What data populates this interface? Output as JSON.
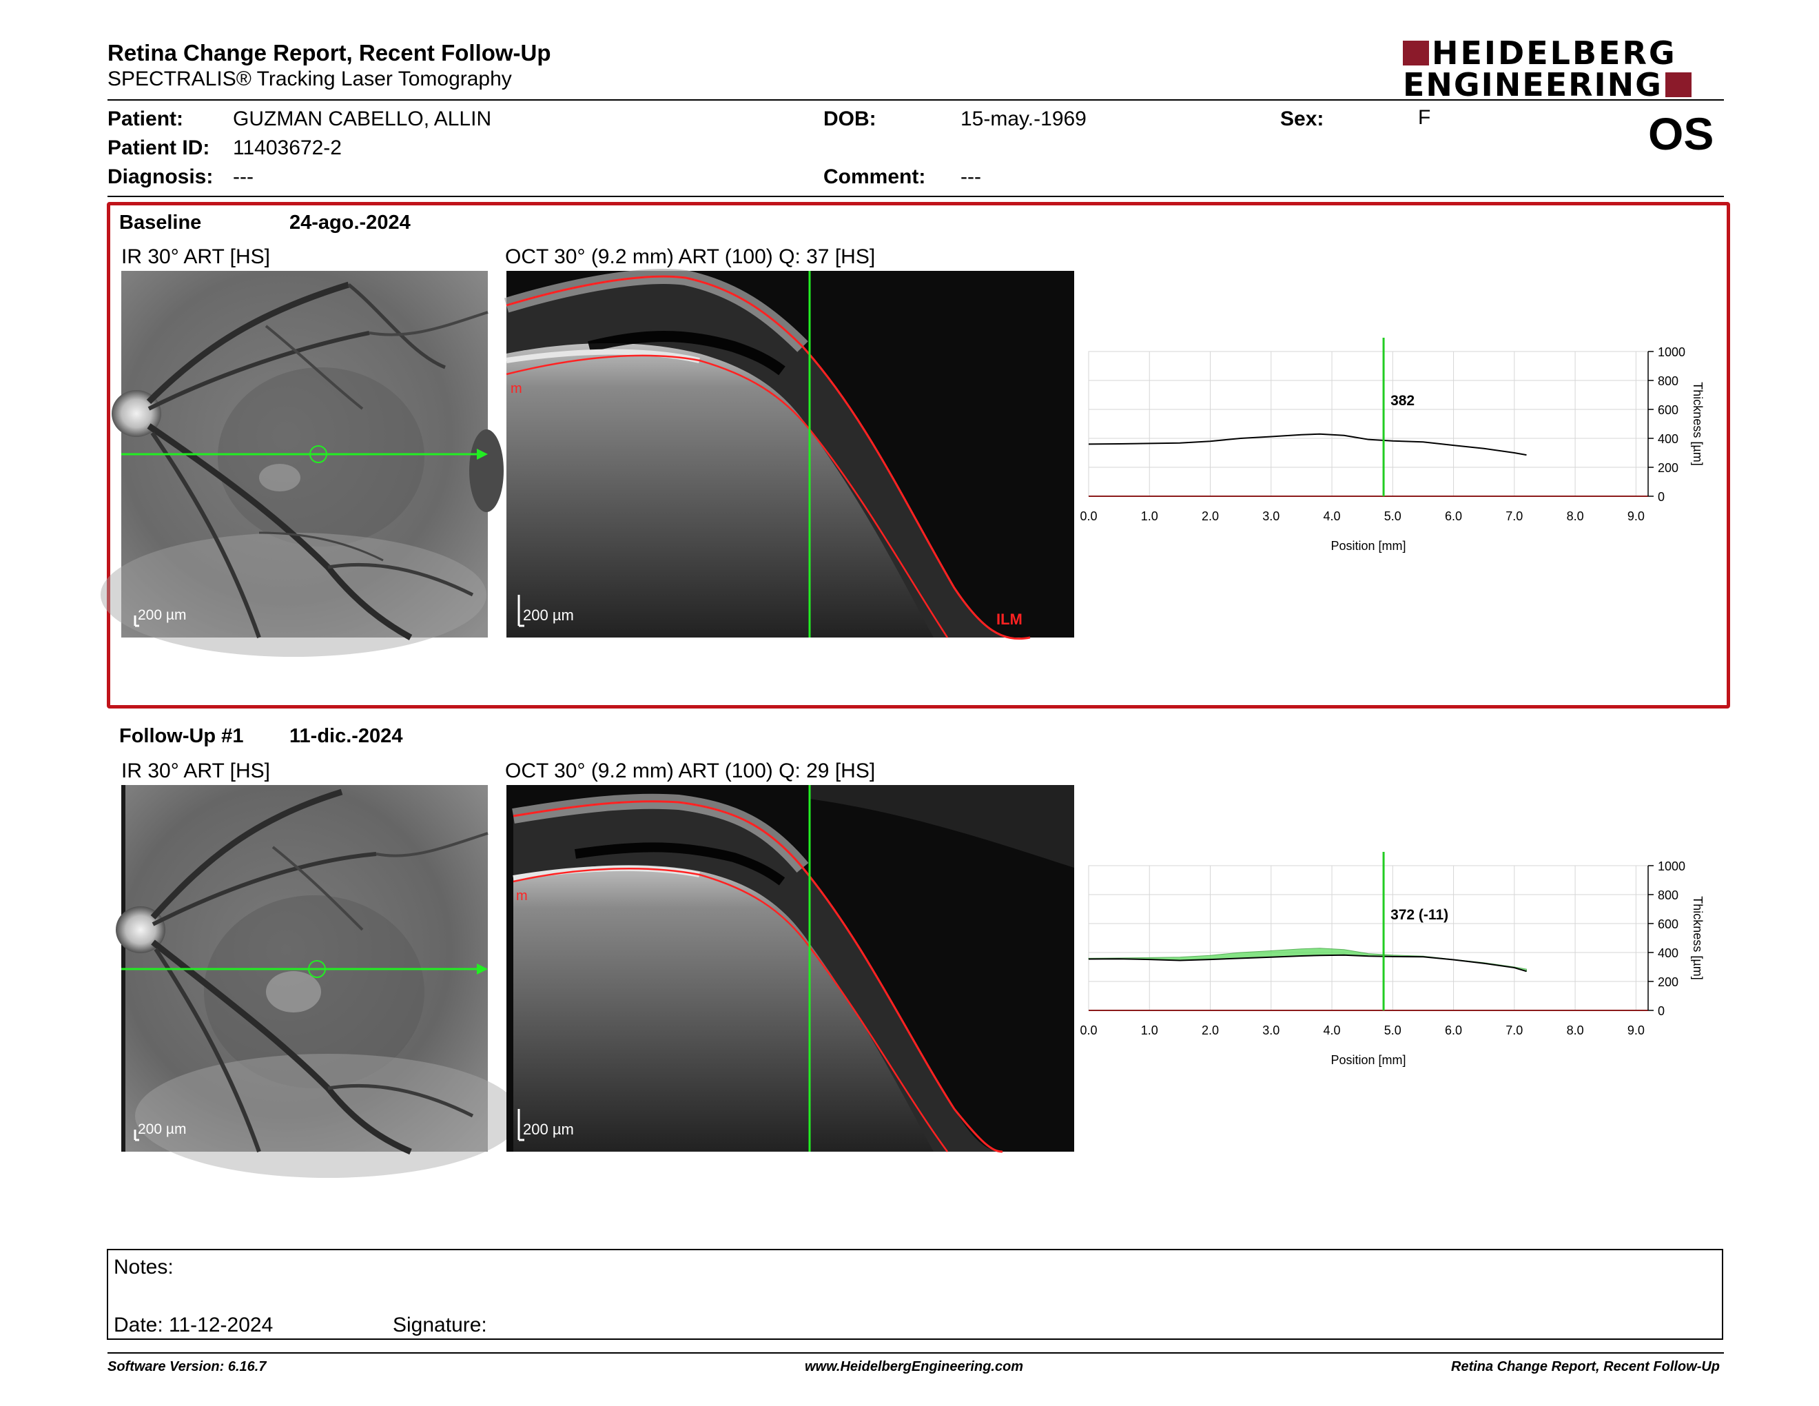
{
  "header": {
    "title": "Retina Change Report, Recent Follow-Up",
    "subtitle": "SPECTRALIS® Tracking Laser Tomography",
    "logo_line1": "HEIDELBERG",
    "logo_line2": "ENGINEERING",
    "brand_color": "#8b1a2a"
  },
  "patient": {
    "patient_label": "Patient:",
    "patient_value": "GUZMAN CABELLO, ALLIN",
    "id_label": "Patient ID:",
    "id_value": "11403672-2",
    "diagnosis_label": "Diagnosis:",
    "diagnosis_value": "---",
    "dob_label": "DOB:",
    "dob_value": "15-may.-1969",
    "comment_label": "Comment:",
    "comment_value": "---",
    "sex_label": "Sex:",
    "sex_value": "F",
    "eye": "OS"
  },
  "baseline": {
    "label": "Baseline",
    "date": "24-ago.-2024",
    "ir_title": "IR 30° ART [HS]",
    "ir_scale": "200 µm",
    "oct_title": "OCT 30° (9.2 mm) ART (100) Q: 37 [HS]",
    "oct_scale": "200 µm",
    "oct_ilm_label": "ILM",
    "oct_left_marker": "m",
    "highlight_color": "#c0131a"
  },
  "followup": {
    "label": "Follow-Up #1",
    "date": "11-dic.-2024",
    "ir_title": "IR 30° ART [HS]",
    "ir_scale": "200 µm",
    "oct_title": "OCT 30° (9.2 mm) ART (100) Q: 29 [HS]",
    "oct_scale": "200 µm",
    "oct_left_marker": "m"
  },
  "chart_data": [
    {
      "type": "line",
      "title": "",
      "xlabel": "Position [mm]",
      "ylabel": "Thickness [µm]",
      "xlim": [
        0,
        9.2
      ],
      "ylim": [
        0,
        1000
      ],
      "xticks": [
        "0.0",
        "1.0",
        "2.0",
        "3.0",
        "4.0",
        "5.0",
        "6.0",
        "7.0",
        "8.0",
        "9.0"
      ],
      "yticks": [
        "0",
        "200",
        "400",
        "600",
        "800",
        "1000"
      ],
      "grid": true,
      "cursor_x": 4.85,
      "cursor_label": "382",
      "series": [
        {
          "x": [
            0,
            0.5,
            1.0,
            1.5,
            2.0,
            2.5,
            3.0,
            3.5,
            3.8,
            4.2,
            4.6,
            5.0,
            5.5,
            6.0,
            6.5,
            7.0,
            7.2
          ],
          "values": [
            360,
            362,
            365,
            368,
            380,
            400,
            412,
            425,
            430,
            420,
            392,
            382,
            375,
            352,
            330,
            300,
            285
          ]
        }
      ]
    },
    {
      "type": "area",
      "title": "",
      "xlabel": "Position [mm]",
      "ylabel": "Thickness [µm]",
      "xlim": [
        0,
        9.2
      ],
      "ylim": [
        0,
        1000
      ],
      "xticks": [
        "0.0",
        "1.0",
        "2.0",
        "3.0",
        "4.0",
        "5.0",
        "6.0",
        "7.0",
        "8.0",
        "9.0"
      ],
      "yticks": [
        "0",
        "200",
        "400",
        "600",
        "800",
        "1000"
      ],
      "grid": true,
      "cursor_x": 4.85,
      "cursor_label": "372 (-11)",
      "fill_color": "#5ddc5d",
      "series": [
        {
          "x": [
            0,
            0.5,
            1.0,
            1.5,
            2.0,
            2.5,
            3.0,
            3.5,
            3.8,
            4.2,
            4.6,
            5.0,
            5.5,
            6.0,
            6.5,
            7.0,
            7.2
          ],
          "values": [
            360,
            362,
            365,
            368,
            380,
            400,
            412,
            425,
            430,
            420,
            392,
            382,
            375,
            352,
            330,
            300,
            285
          ]
        },
        {
          "x": [
            0,
            0.5,
            1.0,
            1.5,
            2.0,
            2.5,
            3.0,
            3.5,
            3.8,
            4.2,
            4.6,
            5.0,
            5.5,
            6.0,
            6.5,
            7.0,
            7.2
          ],
          "values": [
            355,
            356,
            352,
            345,
            352,
            360,
            368,
            376,
            380,
            382,
            375,
            372,
            370,
            350,
            325,
            295,
            270
          ]
        }
      ]
    }
  ],
  "notes": {
    "label": "Notes:",
    "date_label": "Date: 11-12-2024",
    "signature_label": "Signature:"
  },
  "footer": {
    "software": "Software Version: 6.16.7",
    "website": "www.HeidelbergEngineering.com",
    "report_name": "Retina Change Report, Recent Follow-Up"
  }
}
